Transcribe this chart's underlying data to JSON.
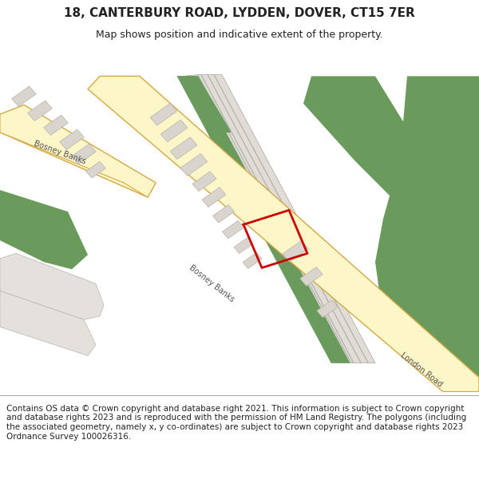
{
  "title": "18, CANTERBURY ROAD, LYDDEN, DOVER, CT15 7ER",
  "subtitle": "Map shows position and indicative extent of the property.",
  "footer": "Contains OS data © Crown copyright and database right 2021. This information is subject to Crown copyright and database rights 2023 and is reproduced with the permission of HM Land Registry. The polygons (including the associated geometry, namely x, y co-ordinates) are subject to Crown copyright and database rights 2023 Ordnance Survey 100026316.",
  "bg_color": "#ffffff",
  "map_bg": "#ffffff",
  "road_yellow_fill": "#fdf6c8",
  "road_yellow_border": "#d4a843",
  "green_fill": "#6a9b5c",
  "building_fill": "#d9d5ce",
  "building_border": "#b8b4ac",
  "gray_road_fill": "#e0dcd6",
  "gray_road_border": "#a8a4a0",
  "plot_border": "#cc0000",
  "label_color": "#444444",
  "title_fontsize": 11,
  "subtitle_fontsize": 9,
  "footer_fontsize": 7.5
}
